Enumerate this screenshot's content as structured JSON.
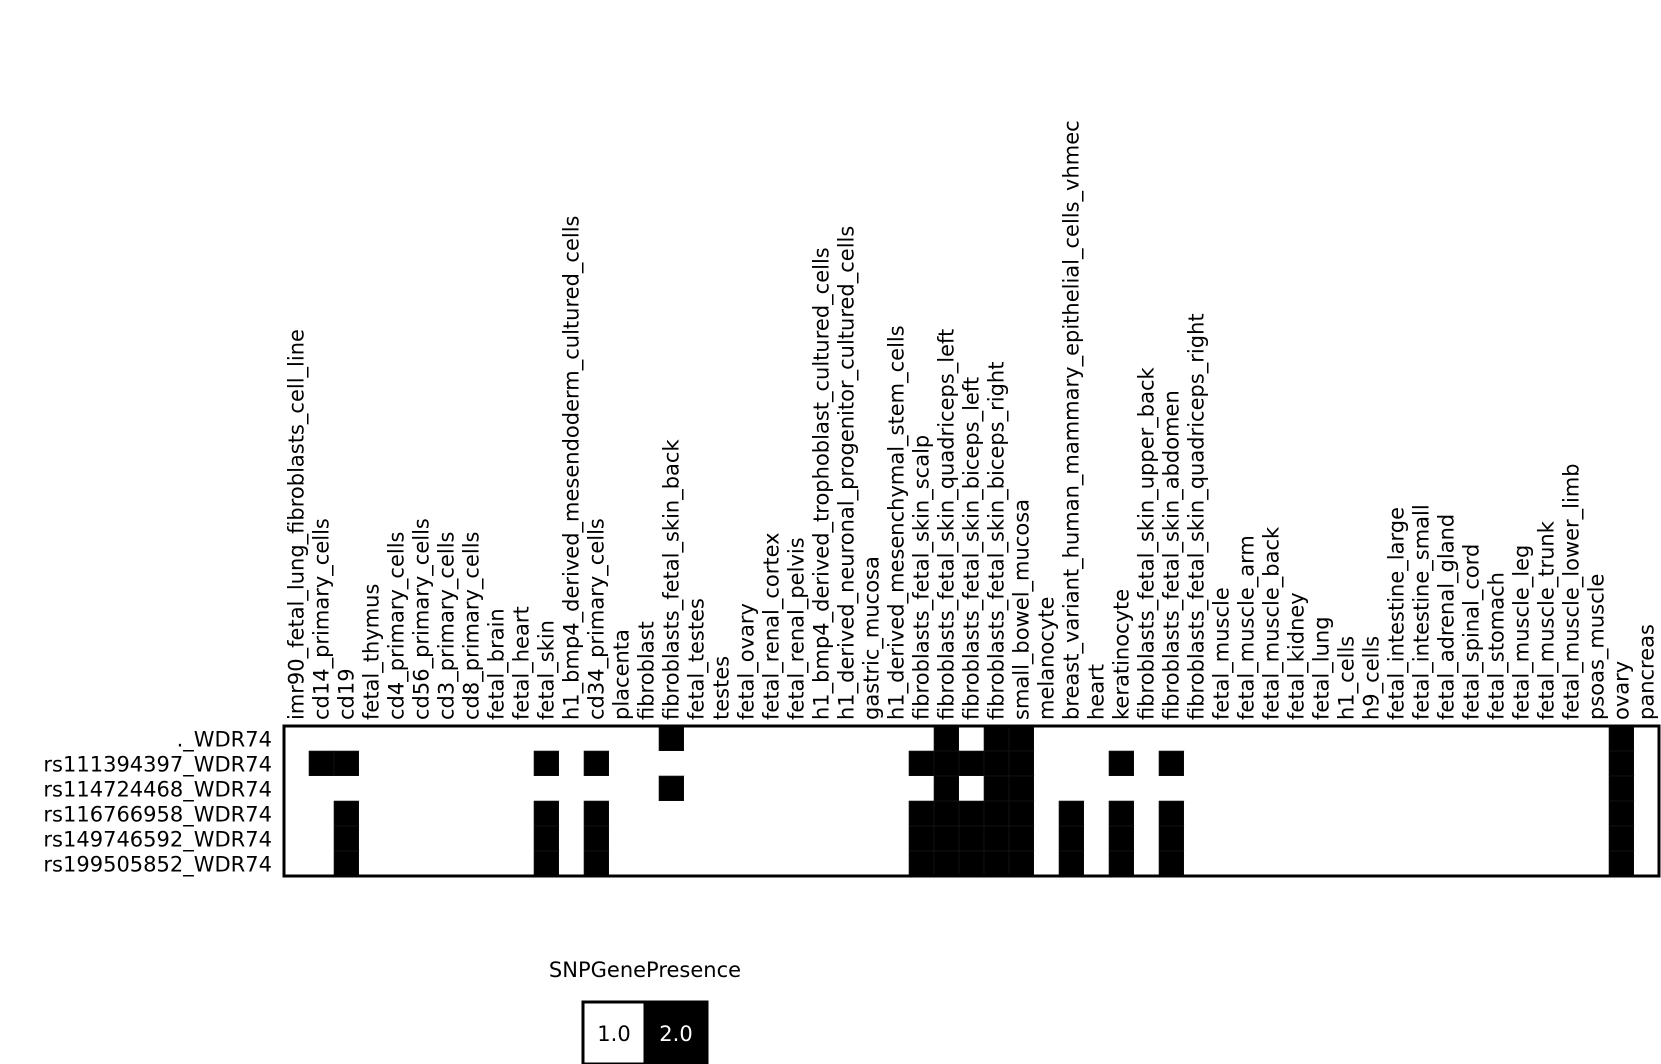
{
  "chart_data": {
    "type": "heatmap",
    "title": "",
    "xlabel": "",
    "ylabel": "",
    "columns": [
      "imr90_fetal_lung_fibroblasts_cell_line",
      "cd14_primary_cells",
      "cd19",
      "fetal_thymus",
      "cd4_primary_cells",
      "cd56_primary_cells",
      "cd3_primary_cells",
      "cd8_primary_cells",
      "fetal_brain",
      "fetal_heart",
      "fetal_skin",
      "h1_bmp4_derived_mesendoderm_cultured_cells",
      "cd34_primary_cells",
      "placenta",
      "fibroblast",
      "fibroblasts_fetal_skin_back",
      "fetal_testes",
      "testes",
      "fetal_ovary",
      "fetal_renal_cortex",
      "fetal_renal_pelvis",
      "h1_bmp4_derived_trophoblast_cultured_cells",
      "h1_derived_neuronal_progenitor_cultured_cells",
      "gastric_mucosa",
      "h1_derived_mesenchymal_stem_cells",
      "fibroblasts_fetal_skin_scalp",
      "fibroblasts_fetal_skin_quadriceps_left",
      "fibroblasts_fetal_skin_biceps_left",
      "fibroblasts_fetal_skin_biceps_right",
      "small_bowel_mucosa",
      "melanocyte",
      "breast_variant_human_mammary_epithelial_cells_vhmec",
      "heart",
      "keratinocyte",
      "fibroblasts_fetal_skin_upper_back",
      "fibroblasts_fetal_skin_abdomen",
      "fibroblasts_fetal_skin_quadriceps_right",
      "fetal_muscle",
      "fetal_muscle_arm",
      "fetal_muscle_back",
      "fetal_kidney",
      "fetal_lung",
      "h1_cells",
      "h9_cells",
      "fetal_intestine_large",
      "fetal_intestine_small",
      "fetal_adrenal_gland",
      "fetal_spinal_cord",
      "fetal_stomach",
      "fetal_muscle_leg",
      "fetal_muscle_trunk",
      "fetal_muscle_lower_limb",
      "psoas_muscle",
      "ovary",
      "pancreas"
    ],
    "rows": [
      "._WDR74",
      "rs111394397_WDR74",
      "rs114724468_WDR74",
      "rs116766958_WDR74",
      "rs149746592_WDR74",
      "rs199505852_WDR74"
    ],
    "present_value": 2.0,
    "absent_value": 1.0,
    "present_cells": [
      [
        15,
        26,
        28,
        29,
        53
      ],
      [
        1,
        2,
        10,
        12,
        25,
        26,
        27,
        28,
        29,
        33,
        35,
        53
      ],
      [
        15,
        26,
        28,
        29,
        53
      ],
      [
        2,
        10,
        12,
        25,
        26,
        27,
        28,
        29,
        31,
        33,
        35,
        53
      ],
      [
        2,
        10,
        12,
        25,
        26,
        27,
        28,
        29,
        31,
        33,
        35,
        53
      ],
      [
        2,
        10,
        12,
        25,
        26,
        27,
        28,
        29,
        31,
        33,
        35,
        53
      ]
    ],
    "legend": {
      "title": "SNPGenePresence",
      "entries": [
        {
          "label": "1.0",
          "color": "#ffffff"
        },
        {
          "label": "2.0",
          "color": "#000000"
        }
      ]
    },
    "colors": {
      "absent": "#ffffff",
      "present": "#000000",
      "border": "#000000"
    },
    "grid": false
  }
}
